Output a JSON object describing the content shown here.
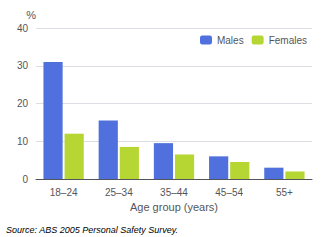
{
  "chart_data": {
    "type": "bar",
    "categories": [
      "18–24",
      "25–34",
      "35–44",
      "45–54",
      "55+"
    ],
    "series": [
      {
        "name": "Males",
        "values": [
          31,
          15.5,
          9.5,
          6,
          3
        ]
      },
      {
        "name": "Females",
        "values": [
          12,
          8.5,
          6.5,
          4.5,
          2
        ]
      }
    ],
    "xlabel": "Age group (years)",
    "ylabel": "%",
    "ylim": [
      0,
      40
    ],
    "yticks": [
      0,
      10,
      20,
      30,
      40
    ],
    "grid": true,
    "legend": "upper right",
    "annotations": [
      "Source: ABS 2005 Personal Safety Survey."
    ]
  }
}
